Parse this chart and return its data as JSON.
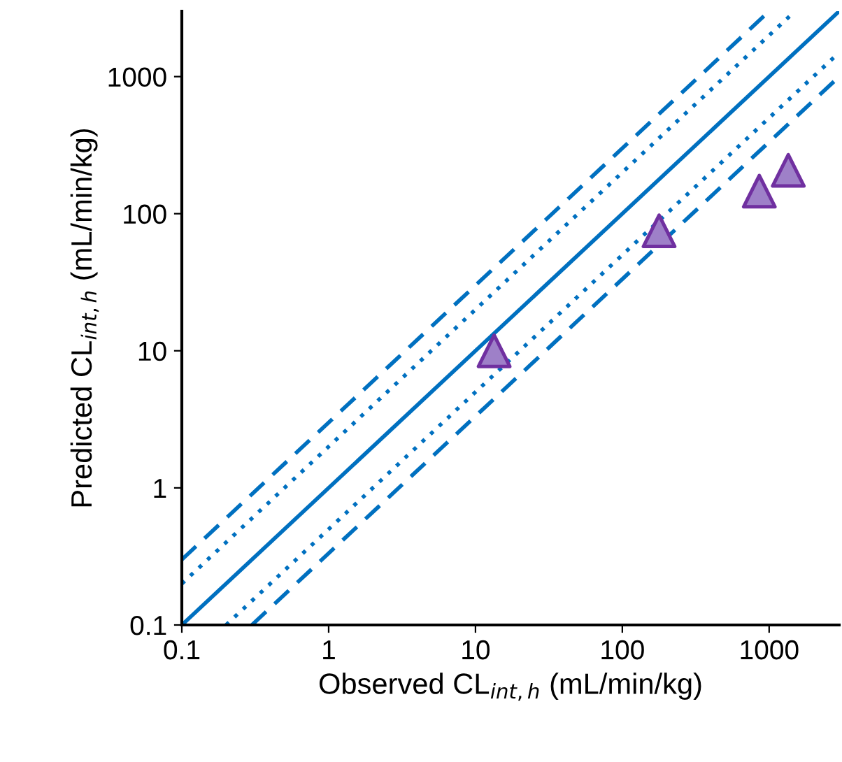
{
  "chart_data": {
    "type": "scatter",
    "xlabel": "Observed CL$_{int,h}$ (mL/min/kg)",
    "ylabel": "Predicted CL$_{int,h}$ (mL/min/kg)",
    "log": "xy",
    "xlim": [
      0.1,
      3000
    ],
    "ylim": [
      0.1,
      3000
    ],
    "xticks": [
      0.1,
      1,
      10,
      100,
      1000
    ],
    "yticks": [
      0.1,
      1,
      10,
      100,
      1000
    ],
    "grid": false,
    "legend": false,
    "series": [
      {
        "type": "line",
        "color": "#0070c0",
        "line_style": "solid",
        "marker": "none",
        "x": [
          0.1,
          3000
        ],
        "values": [
          0.1,
          3000
        ]
      },
      {
        "type": "line",
        "color": "#0070c0",
        "line_style": "dotted",
        "marker": "none",
        "x": [
          0.1,
          1500
        ],
        "values": [
          0.2,
          3000
        ]
      },
      {
        "type": "line",
        "color": "#0070c0",
        "line_style": "dotted",
        "marker": "none",
        "x": [
          0.2,
          3000
        ],
        "values": [
          0.1,
          1500
        ]
      },
      {
        "type": "line",
        "color": "#0070c0",
        "line_style": "dashed",
        "marker": "none",
        "x": [
          0.1,
          1000
        ],
        "values": [
          0.3,
          3000
        ]
      },
      {
        "type": "line",
        "color": "#0070c0",
        "line_style": "dashed",
        "marker": "none",
        "x": [
          0.3,
          3000
        ],
        "values": [
          0.1,
          1000
        ]
      },
      {
        "color": "#9e80c8",
        "marker": "triangle",
        "x": [
          13.4,
          178,
          857,
          1350
        ],
        "values": [
          10,
          75,
          146,
          207
        ]
      }
    ]
  }
}
